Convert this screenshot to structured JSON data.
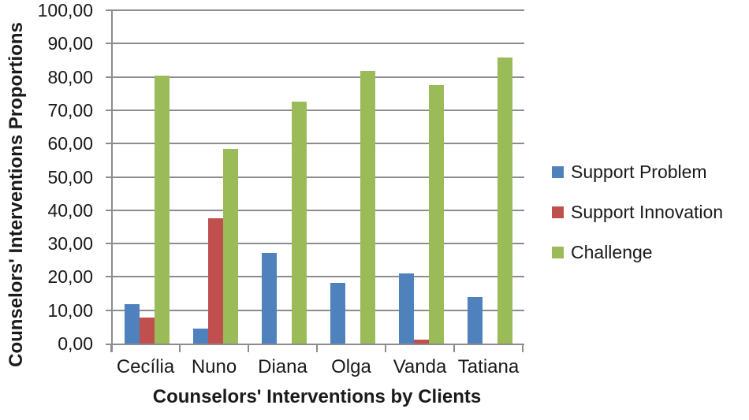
{
  "chart_data": {
    "type": "bar",
    "title": "",
    "xlabel": "Counselors' Interventions by Clients",
    "ylabel": "Counselors' Interventions Proportions",
    "categories": [
      "Cecília",
      "Nuno",
      "Diana",
      "Olga",
      "Vanda",
      "Tatiana"
    ],
    "series": [
      {
        "name": "Support Problem",
        "color": "#4f81bd",
        "values": [
          11.8,
          4.4,
          27.3,
          18.3,
          21.1,
          14.0
        ]
      },
      {
        "name": "Support Innovation",
        "color": "#c0504d",
        "values": [
          7.8,
          37.5,
          0,
          0,
          1.2,
          0
        ]
      },
      {
        "name": "Challenge",
        "color": "#9bbb59",
        "values": [
          80.3,
          58.3,
          72.5,
          81.7,
          77.5,
          85.9
        ]
      }
    ],
    "y_axis": {
      "min": 0,
      "max": 100,
      "step": 10,
      "decimal_separator": ",",
      "tick_labels": [
        "0,00",
        "10,00",
        "20,00",
        "30,00",
        "40,00",
        "50,00",
        "60,00",
        "70,00",
        "80,00",
        "90,00",
        "100,00"
      ]
    },
    "legend_position": "right",
    "grid": true,
    "colors": {
      "grid": "#8c8c8c",
      "axis": "#8c8c8c",
      "text": "#1a1a1a",
      "background": "#ffffff"
    }
  }
}
